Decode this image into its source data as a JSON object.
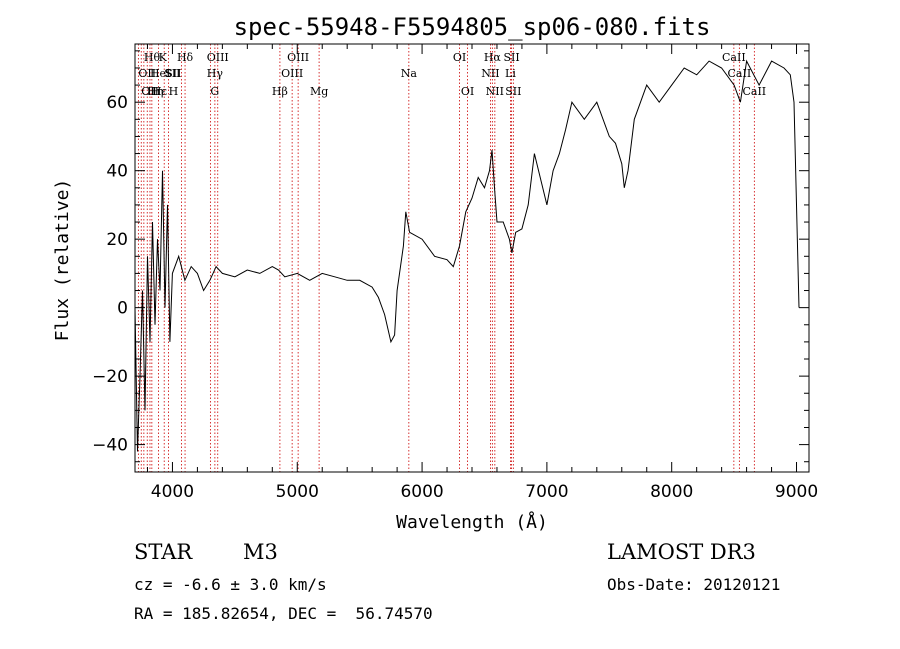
{
  "chart_data": {
    "type": "line",
    "title": "spec-55948-F5594805_sp06-080.fits",
    "xlabel": "Wavelength (Å)",
    "ylabel": "Flux (relative)",
    "xlim": [
      3700,
      9100
    ],
    "ylim": [
      -48,
      77
    ],
    "xticks": [
      4000,
      5000,
      6000,
      7000,
      8000,
      9000
    ],
    "yticks": [
      -40,
      -20,
      0,
      20,
      40,
      60
    ],
    "series": [
      {
        "name": "flux",
        "x": [
          3700,
          3720,
          3740,
          3760,
          3780,
          3800,
          3820,
          3840,
          3860,
          3880,
          3900,
          3920,
          3940,
          3960,
          3980,
          4000,
          4050,
          4100,
          4150,
          4200,
          4250,
          4300,
          4350,
          4400,
          4500,
          4600,
          4700,
          4800,
          4850,
          4900,
          5000,
          5100,
          5200,
          5300,
          5400,
          5500,
          5600,
          5650,
          5700,
          5750,
          5780,
          5800,
          5850,
          5870,
          5900,
          6000,
          6100,
          6200,
          6250,
          6300,
          6350,
          6400,
          6450,
          6500,
          6540,
          6560,
          6580,
          6600,
          6650,
          6700,
          6720,
          6750,
          6800,
          6850,
          6900,
          7000,
          7050,
          7100,
          7150,
          7200,
          7300,
          7400,
          7500,
          7550,
          7600,
          7620,
          7650,
          7700,
          7800,
          7900,
          8000,
          8100,
          8200,
          8300,
          8400,
          8500,
          8550,
          8600,
          8700,
          8800,
          8900,
          8950,
          8980,
          9000,
          9020
        ],
        "y": [
          0,
          -42,
          -20,
          5,
          -30,
          15,
          -10,
          25,
          -5,
          20,
          5,
          40,
          0,
          30,
          -10,
          10,
          15,
          8,
          12,
          10,
          5,
          8,
          12,
          10,
          9,
          11,
          10,
          12,
          11,
          9,
          10,
          8,
          10,
          9,
          8,
          8,
          6,
          3,
          -2,
          -10,
          -8,
          5,
          18,
          28,
          22,
          20,
          15,
          14,
          12,
          18,
          28,
          32,
          38,
          35,
          40,
          46,
          35,
          25,
          25,
          20,
          16,
          22,
          23,
          30,
          45,
          30,
          40,
          45,
          52,
          60,
          55,
          60,
          50,
          48,
          42,
          35,
          40,
          55,
          65,
          60,
          65,
          70,
          68,
          72,
          70,
          65,
          60,
          72,
          65,
          72,
          70,
          68,
          60,
          30,
          0
        ]
      }
    ],
    "reference_lines": [
      {
        "wavelength": 3727,
        "label": "OII",
        "row": 2,
        "anchor": "start"
      },
      {
        "wavelength": 3750,
        "label": "OII",
        "row": 3,
        "anchor": "start"
      },
      {
        "wavelength": 3771,
        "label": "Hθ",
        "row": 1,
        "anchor": "start"
      },
      {
        "wavelength": 3798,
        "label": "Hη",
        "row": 3,
        "anchor": "start"
      },
      {
        "wavelength": 3820,
        "label": "HeI",
        "row": 2,
        "anchor": "start"
      },
      {
        "wavelength": 3835,
        "label": "Hε",
        "row": 3,
        "anchor": "start"
      },
      {
        "wavelength": 3889,
        "label": "K",
        "row": 1,
        "anchor": "start"
      },
      {
        "wavelength": 3934,
        "label": "SII",
        "row": 2,
        "anchor": "start"
      },
      {
        "wavelength": 3969,
        "label": "H",
        "row": 3,
        "anchor": "start"
      },
      {
        "wavelength": 4101,
        "label": "Hδ",
        "row": 1,
        "anchor": "middle"
      },
      {
        "wavelength": 4072,
        "label": "SII",
        "row": 2,
        "anchor": "end"
      },
      {
        "wavelength": 4304,
        "label": "G",
        "row": 3,
        "anchor": "start"
      },
      {
        "wavelength": 4340,
        "label": "Hγ",
        "row": 2,
        "anchor": "middle"
      },
      {
        "wavelength": 4363,
        "label": "OIII",
        "row": 1,
        "anchor": "middle"
      },
      {
        "wavelength": 4861,
        "label": "Hβ",
        "row": 3,
        "anchor": "middle"
      },
      {
        "wavelength": 4959,
        "label": "OIII",
        "row": 2,
        "anchor": "middle"
      },
      {
        "wavelength": 5007,
        "label": "OIII",
        "row": 1,
        "anchor": "middle"
      },
      {
        "wavelength": 5175,
        "label": "Mg",
        "row": 3,
        "anchor": "middle"
      },
      {
        "wavelength": 5894,
        "label": "Na",
        "row": 2,
        "anchor": "middle"
      },
      {
        "wavelength": 6300,
        "label": "OI",
        "row": 1,
        "anchor": "middle"
      },
      {
        "wavelength": 6364,
        "label": "OI",
        "row": 3,
        "anchor": "middle"
      },
      {
        "wavelength": 6548,
        "label": "NII",
        "row": 2,
        "anchor": "middle"
      },
      {
        "wavelength": 6563,
        "label": "Hα",
        "row": 1,
        "anchor": "middle"
      },
      {
        "wavelength": 6583,
        "label": "NII",
        "row": 3,
        "anchor": "middle"
      },
      {
        "wavelength": 6708,
        "label": "Li",
        "row": 2,
        "anchor": "middle"
      },
      {
        "wavelength": 6717,
        "label": "SII",
        "row": 1,
        "anchor": "middle"
      },
      {
        "wavelength": 6731,
        "label": "SII",
        "row": 3,
        "anchor": "middle"
      },
      {
        "wavelength": 8498,
        "label": "CaII",
        "row": 1,
        "anchor": "middle"
      },
      {
        "wavelength": 8542,
        "label": "CaII",
        "row": 2,
        "anchor": "middle"
      },
      {
        "wavelength": 8662,
        "label": "CaII",
        "row": 3,
        "anchor": "middle"
      }
    ]
  },
  "info": {
    "class_label": "STAR",
    "subclass": "M3",
    "survey": "LAMOST DR3",
    "cz": "cz = -6.6 ± 3.0 km/s",
    "obs_date": "Obs-Date: 20120121",
    "coords": "RA = 185.82654, DEC =  56.74570"
  },
  "colors": {
    "line": "#000000",
    "reference": "#cc0000",
    "background": "#ffffff"
  }
}
